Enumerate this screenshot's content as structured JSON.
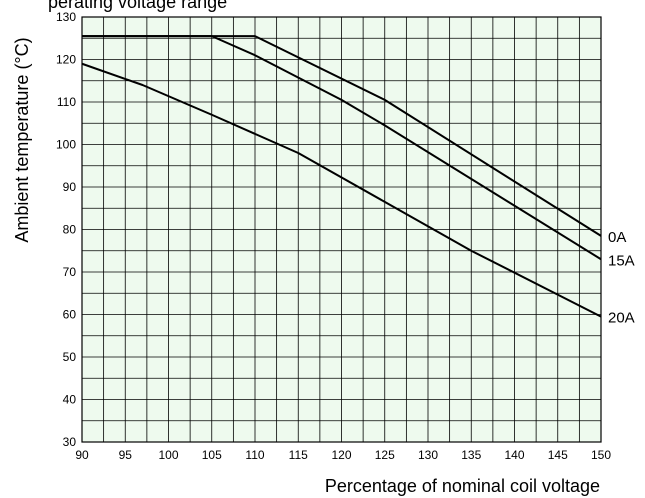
{
  "chart_data": {
    "type": "line",
    "title": "",
    "partial_top_text": "perating voltage range",
    "xlabel": "Percentage of nominal coil voltage",
    "ylabel": "Ambient temperature (°C)",
    "xlim": [
      90,
      150
    ],
    "ylim": [
      30,
      130
    ],
    "x_ticks": [
      90,
      95,
      100,
      105,
      110,
      115,
      120,
      125,
      130,
      135,
      140,
      145,
      150
    ],
    "y_ticks": [
      30,
      40,
      50,
      60,
      70,
      80,
      90,
      100,
      110,
      120,
      130
    ],
    "grid": true,
    "background_color": "#eefaee",
    "line_color": "#000000",
    "series": [
      {
        "name": "0A",
        "x": [
          90,
          110,
          125,
          150
        ],
        "y": [
          125.5,
          125.5,
          110.5,
          78.5
        ]
      },
      {
        "name": "15A",
        "x": [
          90,
          105,
          110,
          120,
          125,
          150
        ],
        "y": [
          125.5,
          125.5,
          121,
          110.5,
          104.5,
          73
        ]
      },
      {
        "name": "20A",
        "x": [
          90,
          97,
          105,
          115,
          125,
          135,
          150
        ],
        "y": [
          119,
          114,
          107,
          98,
          86.5,
          75,
          59.5
        ]
      }
    ]
  }
}
